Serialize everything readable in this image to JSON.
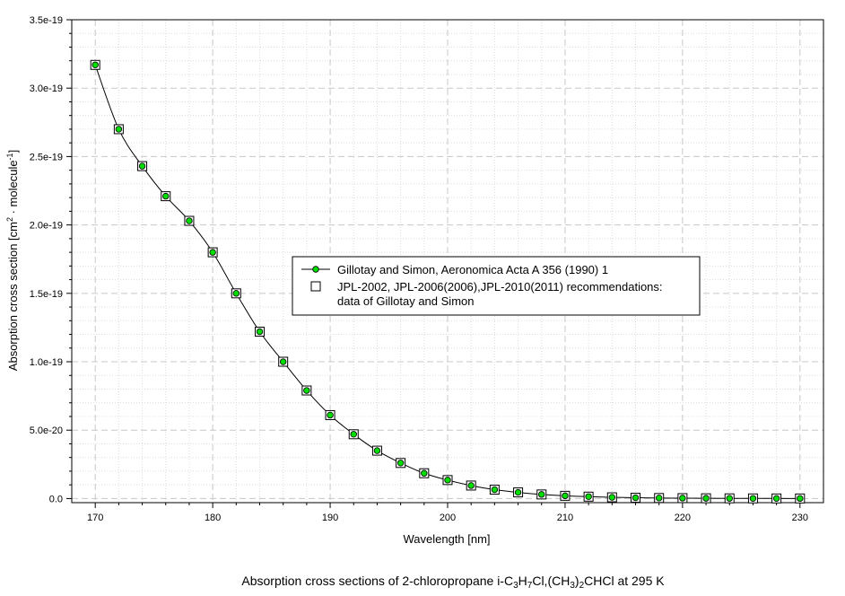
{
  "chart_data": {
    "type": "line",
    "xlabel": "Wavelength [nm]",
    "ylabel": {
      "pre": "Absorption cross section [cm",
      "sup1": "2",
      "mid": " · molecule",
      "sup2": "-1",
      "post": "]"
    },
    "xlim": [
      168,
      232
    ],
    "ylim": [
      -3e-21,
      3.5e-19
    ],
    "x_ticks": [
      170,
      180,
      190,
      200,
      210,
      220,
      230
    ],
    "x_tick_labels": [
      "170",
      "180",
      "190",
      "200",
      "210",
      "220",
      "230"
    ],
    "y_ticks": [
      0,
      5e-20,
      1e-19,
      1.5e-19,
      2e-19,
      2.5e-19,
      3e-19,
      3.5e-19
    ],
    "y_tick_labels": [
      "0.0",
      "5.0e-20",
      "1.0e-19",
      "1.5e-19",
      "2.0e-19",
      "2.5e-19",
      "3.0e-19",
      "3.5e-19"
    ],
    "grid": true,
    "legend_position": "center-right",
    "x": [
      170,
      172,
      174,
      176,
      178,
      180,
      182,
      184,
      186,
      188,
      190,
      192,
      194,
      196,
      198,
      200,
      202,
      204,
      206,
      208,
      210,
      212,
      214,
      216,
      218,
      220,
      222,
      224,
      226,
      228,
      230
    ],
    "series": [
      {
        "name": "Gillotay and Simon, Aeronomica Acta A 356 (1990) 1",
        "marker": "green-circle",
        "line_color": "#000000",
        "marker_color": "#00dd00",
        "values": [
          3.17e-19,
          2.7e-19,
          2.43e-19,
          2.21e-19,
          2.03e-19,
          1.8e-19,
          1.5e-19,
          1.22e-19,
          1e-19,
          7.9e-20,
          6.1e-20,
          4.7e-20,
          3.5e-20,
          2.6e-20,
          1.85e-20,
          1.35e-20,
          9.5e-21,
          6.5e-21,
          4.5e-21,
          3e-21,
          2e-21,
          1.4e-21,
          9e-22,
          6e-22,
          4e-22,
          3e-22,
          2e-22,
          1.5e-22,
          1e-22,
          8e-23,
          6e-23
        ]
      },
      {
        "name_lines": [
          "JPL-2002, JPL-2006(2006),JPL-2010(2011) recommendations:",
          "data of Gillotay and Simon"
        ],
        "marker": "open-square",
        "values": [
          3.17e-19,
          2.7e-19,
          2.43e-19,
          2.21e-19,
          2.03e-19,
          1.8e-19,
          1.5e-19,
          1.22e-19,
          1e-19,
          7.9e-20,
          6.1e-20,
          4.7e-20,
          3.5e-20,
          2.6e-20,
          1.85e-20,
          1.35e-20,
          9.5e-21,
          6.5e-21,
          4.5e-21,
          3e-21,
          2e-21,
          1.4e-21,
          9e-22,
          6e-22,
          4e-22,
          3e-22,
          2e-22,
          1.5e-22,
          1e-22,
          8e-23,
          6e-23
        ]
      }
    ]
  },
  "caption": {
    "t1": "Absorption cross sections of 2-chloropropane i-C",
    "s1": "3",
    "t2": "H",
    "s2": "7",
    "t3": "Cl,(CH",
    "s3": "3",
    "t4": ")",
    "s4": "2",
    "t5": "CHCl at 295 K"
  },
  "colors": {
    "grid_major": "#c8c8c8",
    "grid_minor": "#dcdcdc",
    "marker_fill": "#00dd00"
  }
}
